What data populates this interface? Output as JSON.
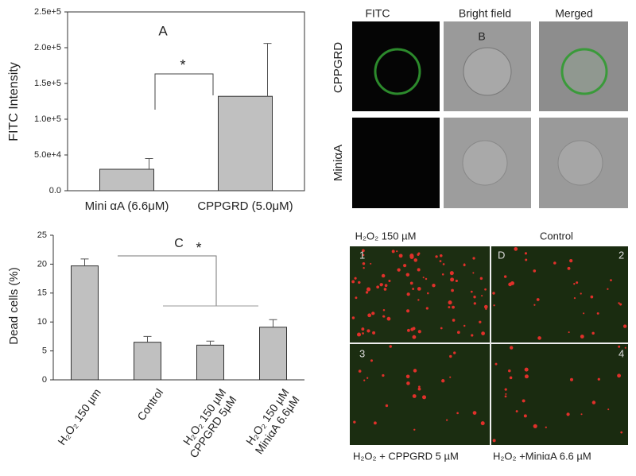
{
  "chart_data": [
    {
      "type": "bar",
      "panel_label": "A",
      "annotation": "*",
      "y_label": "FITC Intensity",
      "categories": [
        "Mini αA (6.6μM)",
        "CPPGRD (5.0μM)"
      ],
      "values": [
        30000,
        132000
      ],
      "errors": [
        15000,
        74000
      ],
      "color": "#c0c0c0",
      "ylim": [
        0,
        250000
      ],
      "yticks": [
        {
          "value": 0,
          "label": "0.0"
        },
        {
          "value": 50000,
          "label": "5.0e+4"
        },
        {
          "value": 100000,
          "label": "1.0e+5"
        },
        {
          "value": 150000,
          "label": "1.5e+5"
        },
        {
          "value": 200000,
          "label": "2.0e+5"
        },
        {
          "value": 250000,
          "label": "2.5e+5"
        }
      ]
    },
    {
      "type": "bar",
      "panel_label": "C",
      "annotation": "*",
      "y_label": "Dead cells (%)",
      "categories": [
        "H₂O₂ 150 µm",
        "Control",
        "H₂O₂ 150 µM\nCPPGRD 5µM",
        "H₂O₂ 150 µM\nMiniαA 6.6µM"
      ],
      "values": [
        19.7,
        6.5,
        6.0,
        9.1
      ],
      "errors": [
        1.2,
        1.0,
        0.7,
        1.3
      ],
      "color": "#c0c0c0",
      "ylim": [
        0,
        25
      ],
      "yticks": [
        0,
        5,
        10,
        15,
        20,
        25
      ]
    }
  ],
  "panel_b": {
    "label": "B",
    "columns": [
      "FITC",
      "Bright field",
      "Merged"
    ],
    "rows": [
      "CPPGRD",
      "MiniαA"
    ]
  },
  "panel_d": {
    "label": "D",
    "top_labels": [
      "H₂O₂ 150 µM",
      "Control"
    ],
    "bottom_labels": [
      "H₂O₂ + CPPGRD 5 µM",
      "H₂O₂ +MiniαA 6.6 µM"
    ],
    "numbers": [
      "1",
      "2",
      "3",
      "4"
    ]
  }
}
